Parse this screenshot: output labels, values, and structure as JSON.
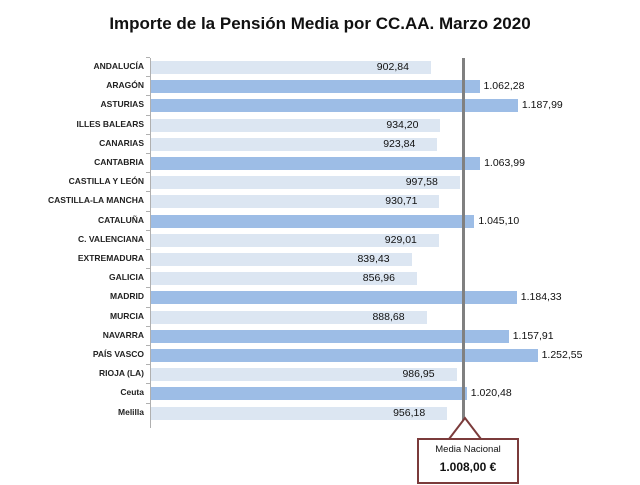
{
  "chart_data": {
    "type": "bar",
    "orientation": "horizontal",
    "title": "Importe de la Pensión Media  por CC.AA. Marzo 2020",
    "xlabel": "",
    "ylabel": "",
    "categories": [
      "ANDALUCÍA",
      "ARAGÓN",
      "ASTURIAS",
      "ILLES BALEARS",
      "CANARIAS",
      "CANTABRIA",
      "CASTILLA Y LEÓN",
      "CASTILLA-LA MANCHA",
      "CATALUÑA",
      "C. VALENCIANA",
      "EXTREMADURA",
      "GALICIA",
      "MADRID",
      "MURCIA",
      "NAVARRA",
      "PAÍS VASCO",
      "RIOJA (LA)",
      "Ceuta",
      "Melilla"
    ],
    "values": [
      902.84,
      1062.28,
      1187.99,
      934.2,
      923.84,
      1063.99,
      997.58,
      930.71,
      1045.1,
      929.01,
      839.43,
      856.96,
      1184.33,
      888.68,
      1157.91,
      1252.55,
      986.95,
      1020.48,
      956.18
    ],
    "value_labels": [
      "902,84",
      "1.062,28",
      "1.187,99",
      "934,20",
      "923,84",
      "1.063,99",
      "997,58",
      "930,71",
      "1.045,10",
      "929,01",
      "839,43",
      "856,96",
      "1.184,33",
      "888,68",
      "1.157,91",
      "1.252,55",
      "986,95",
      "1.020,48",
      "956,18"
    ],
    "reference_line": {
      "label": "Media Nacional",
      "value": 1008.0,
      "value_label": "1.008,00 €"
    },
    "colors": {
      "above_mean": "#9dbde6",
      "below_mean": "#dce6f2",
      "reference_line": "#808080",
      "callout_border": "#7b3b3b"
    },
    "grid": false,
    "legend": "none"
  },
  "callout": {
    "label": "Media Nacional",
    "value": "1.008,00 €"
  }
}
